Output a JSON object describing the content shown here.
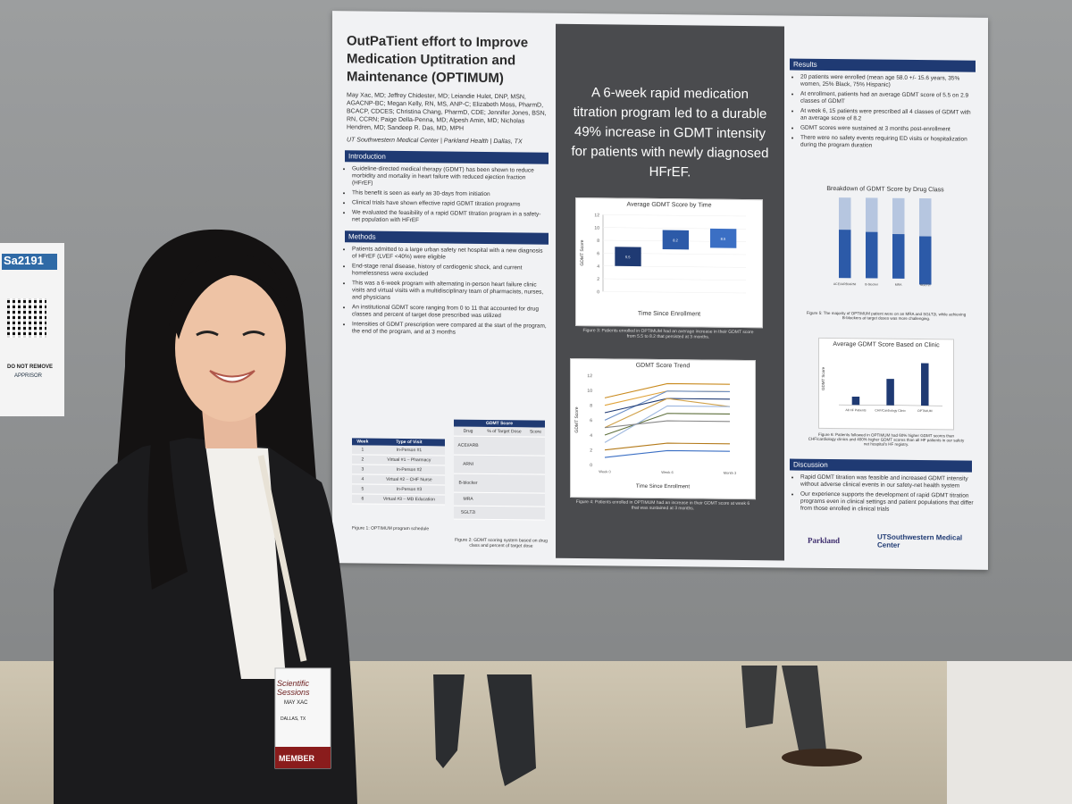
{
  "poster": {
    "title": "OutPaTient effort to Improve Medication Uptitration and Maintenance (OPTIMUM)",
    "authors": "May Xac, MD; Jeffrey Chidester, MD; Leiandie Hulet, DNP, MSN, AGACNP-BC; Megan Kelly, RN, MS, ANP-C; Elizabeth Moss, PharmD, BCACP, CDCES; Christina Chang, PharmD, CDE; Jennifer Jones, BSN, RN, CCRN; Paige Della-Penna, MD; Alpesh Amin, MD; Nicholas Hendren, MD; Sandeep R. Das, MD, MPH",
    "affiliation": "UT Southwestern Medical Center | Parkland Health | Dallas, TX",
    "intro_heading": "Introduction",
    "intro": [
      "Guideline-directed medical therapy (GDMT) has been shown to reduce morbidity and mortality in heart failure with reduced ejection fraction (HFrEF)",
      "This benefit is seen as early as 30-days from initiation",
      "Clinical trials have shown effective rapid GDMT titration programs",
      "We evaluated the feasibility of a rapid GDMT titration program in a safety-net population with HFrEF"
    ],
    "methods_heading": "Methods",
    "methods": [
      "Patients admitted to a large urban safety net hospital with a new diagnosis of HFrEF (LVEF <40%) were eligible",
      "End-stage renal disease, history of cardiogenic shock, and current homelessness were excluded",
      "This was a 6-week program with alternating in-person heart failure clinic visits and virtual visits with a multidisciplinary team of pharmacists, nurses, and physicians",
      "An institutional GDMT score ranging from 0 to 11 that accounted for drug classes and percent of target dose prescribed was utilized",
      "Intensities of GDMT prescription were compared at the start of the program, the end of the program, and at 3 months"
    ],
    "schedule": {
      "headers": [
        "Week",
        "Type of Visit"
      ],
      "rows": [
        [
          "1",
          "In-Person #1"
        ],
        [
          "2",
          "Virtual #1 – Pharmacy"
        ],
        [
          "3",
          "In-Person #2"
        ],
        [
          "4",
          "Virtual #2 – CHF Nurse"
        ],
        [
          "5",
          "In-Person #3"
        ],
        [
          "6",
          "Virtual #3 – MD Education"
        ]
      ],
      "caption": "Figure 1: OPTIMUM program schedule"
    },
    "score_table": {
      "title": "GDMT Score",
      "headers": [
        "Drug",
        "% of Target Dose",
        "Score"
      ],
      "rows": [
        "ACEi/ARB",
        "ARNI",
        "B-blocker",
        "MRA",
        "SGLT2i"
      ],
      "caption": "Figure 2: GDMT scoring system based on drug class and percent of target dose"
    },
    "headline": "A 6-week rapid medication titration program led to a durable 49% increase in GDMT intensity for patients with newly diagnosed HFrEF.",
    "fig3_title": "Average GDMT Score by Time",
    "fig3_ylabel": "GDMT Score",
    "fig3_xlabel": "Time Since Enrollment",
    "fig3_caption": "Figure 3: Patients enrolled in OPTIMUM had an average increase in their GDMT score from 5.5 to 8.2 that persisted at 3 months.",
    "fig4_title": "GDMT Score Trend",
    "fig4_ylabel": "GDMT Score",
    "fig4_xlabel": "Time Since Enrollment",
    "fig4_caption": "Figure 4: Patients enrolled in OPTIMUM had an increase in their GDMT score at week 6 that was sustained at 3 months.",
    "results_heading": "Results",
    "results": [
      "20 patients were enrolled (mean age 58.0 +/- 15.6 years, 35% women, 25% Black, 75% Hispanic)",
      "At enrollment, patients had an average GDMT score of 5.5 on 2.9 classes of GDMT",
      "At week 6, 15 patients were prescribed all 4 classes of GDMT with an average score of 8.2",
      "GDMT scores were sustained at 3 months post-enrollment",
      "There were no safety events requiring ED visits or hospitalization during the program duration"
    ],
    "fig5_title": "Breakdown of GDMT Score by Drug Class",
    "fig5_caption": "Figure 5: The majority of OPTIMUM patient were on an MRA and SGLT2i, while achieving B-blockers at target doses was more challenging.",
    "fig6_title": "Average GDMT Score Based on Clinic",
    "fig6_caption": "Figure 6: Patients followed in OPTIMUM had 60% higher GDMT scores than CHF/cardiology clinics and 400% higher GDMT scores than all HF patients in our safety net hospital's HF registry.",
    "discussion_heading": "Discussion",
    "discussion": [
      "Rapid GDMT titration was feasible and increased GDMT intensity without adverse clinical events in our safety-net health system",
      "Our experience supports the development of rapid GDMT titration programs even in clinical settings and patient populations that differ from those enrolled in clinical trials"
    ],
    "logo1": "Parkland",
    "logo2": "UTSouthwestern Medical Center"
  },
  "chart_data": [
    {
      "type": "bar",
      "title": "Average GDMT Score by Time",
      "ylabel": "GDMT Score",
      "xlabel": "Time Since Enrollment",
      "categories": [
        "Week 0",
        "Week 6",
        "Month 3"
      ],
      "values": [
        5.5,
        8.2,
        8.5
      ],
      "ylim": [
        0,
        12
      ],
      "colors": [
        "#1f3a73",
        "#2c5aa8",
        "#3b6fc4"
      ]
    },
    {
      "type": "line",
      "title": "GDMT Score Trend",
      "ylabel": "GDMT Score",
      "xlabel": "Time Since Enrollment",
      "x": [
        "Week 0",
        "Week 6",
        "Month 3"
      ],
      "ylim": [
        0,
        12
      ],
      "series": [
        {
          "values": [
            9,
            11,
            11
          ],
          "color": "#c98a1e"
        },
        {
          "values": [
            8,
            10,
            10
          ],
          "color": "#e0a33a"
        },
        {
          "values": [
            6,
            10,
            10
          ],
          "color": "#6b8fc7"
        },
        {
          "values": [
            7,
            9,
            9
          ],
          "color": "#1f3a73"
        },
        {
          "values": [
            5,
            9,
            8
          ],
          "color": "#d1a24a"
        },
        {
          "values": [
            4,
            7,
            7
          ],
          "color": "#5d6f3b"
        },
        {
          "values": [
            3,
            8,
            8
          ],
          "color": "#9fb8df"
        },
        {
          "values": [
            2,
            3,
            3
          ],
          "color": "#b47a1a"
        },
        {
          "values": [
            1,
            2,
            2
          ],
          "color": "#3b6fc4"
        },
        {
          "values": [
            5,
            6,
            6
          ],
          "color": "#888888"
        }
      ]
    },
    {
      "type": "bar",
      "title": "Breakdown of GDMT Score by Drug Class",
      "categories": [
        "ACEi/ARB/ARNI",
        "B-blocker",
        "MRA",
        "SGLT2i"
      ],
      "values": [
        100,
        100,
        100,
        100
      ],
      "ylim": [
        0,
        100
      ]
    },
    {
      "type": "bar",
      "title": "Average GDMT Score Based on Clinic",
      "ylabel": "GDMT Score",
      "categories": [
        "All HF Patients",
        "CHF/Cardiology Clinic",
        "OPTIMUM"
      ],
      "values": [
        1.6,
        5.1,
        8.2
      ],
      "ylim": [
        0,
        10
      ]
    }
  ],
  "sign": {
    "id": "Sa2191",
    "notice": "DO NOT REMOVE",
    "brand": "APPRISOR"
  },
  "badge": {
    "event": "Scientific Sessions",
    "name": "MAY XAC",
    "city": "DALLAS, TX",
    "member": "MEMBER"
  }
}
